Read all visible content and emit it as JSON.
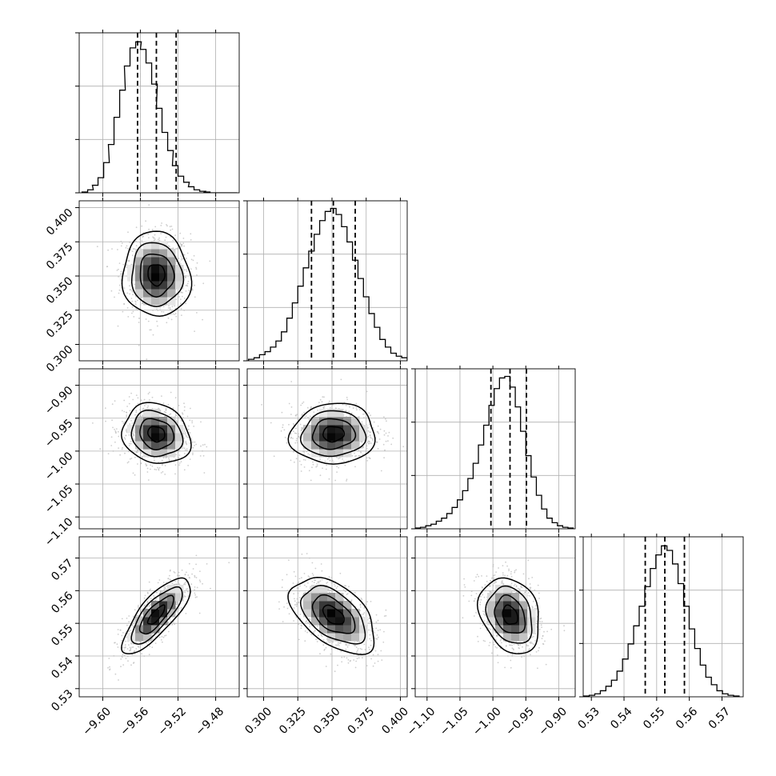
{
  "chart_data": {
    "type": "scatter",
    "plot_kind": "corner",
    "colors": {
      "line": "#000000",
      "grid": "#b0b0b0",
      "scatter": "#bdbdbd",
      "frame": "#000000"
    },
    "grid": true,
    "quantiles_shown": [
      0.16,
      0.5,
      0.84
    ],
    "params": [
      {
        "range": [
          -9.625,
          -9.455
        ],
        "ticks": [
          -9.6,
          -9.56,
          -9.52,
          -9.48
        ],
        "tick_labels": [
          "−9.60",
          "−9.56",
          "−9.52",
          "−9.48"
        ],
        "mean": -9.543,
        "sd": 0.018,
        "quantiles": [
          -9.563,
          -9.543,
          -9.522
        ],
        "hist_x": [
          -9.619,
          -9.613,
          -9.608,
          -9.602,
          -9.596,
          -9.591,
          -9.585,
          -9.579,
          -9.574,
          -9.568,
          -9.562,
          -9.557,
          -9.551,
          -9.545,
          -9.54,
          -9.534,
          -9.528,
          -9.523,
          -9.517,
          -9.511,
          -9.506,
          -9.5,
          -9.494,
          -9.489,
          -9.483,
          -9.477,
          -9.472,
          -9.466,
          -9.46
        ],
        "hist_counts": [
          0.005,
          0.02,
          0.05,
          0.1,
          0.2,
          0.32,
          0.5,
          0.68,
          0.84,
          0.96,
          1.0,
          0.95,
          0.86,
          0.72,
          0.56,
          0.4,
          0.28,
          0.18,
          0.11,
          0.07,
          0.04,
          0.02,
          0.01,
          0.005,
          0.0,
          0.0,
          0.0,
          0.0,
          0.0
        ],
        "hist_max": 1.06
      },
      {
        "range": [
          0.288,
          0.405
        ],
        "ticks": [
          0.3,
          0.325,
          0.35,
          0.375,
          0.4
        ],
        "tick_labels": [
          "0.300",
          "0.325",
          "0.350",
          "0.375",
          "0.400"
        ],
        "mean": 0.351,
        "sd": 0.0155,
        "quantiles": [
          0.335,
          0.351,
          0.367
        ],
        "hist_x": [
          0.291,
          0.295,
          0.299,
          0.303,
          0.307,
          0.311,
          0.315,
          0.319,
          0.323,
          0.327,
          0.331,
          0.335,
          0.339,
          0.343,
          0.347,
          0.351,
          0.355,
          0.359,
          0.363,
          0.367,
          0.371,
          0.375,
          0.379,
          0.383,
          0.387,
          0.391,
          0.395,
          0.399,
          0.403
        ],
        "hist_counts": [
          0.01,
          0.02,
          0.04,
          0.06,
          0.09,
          0.13,
          0.19,
          0.28,
          0.38,
          0.49,
          0.61,
          0.72,
          0.83,
          0.92,
          0.98,
          1.0,
          0.96,
          0.88,
          0.78,
          0.66,
          0.54,
          0.42,
          0.31,
          0.22,
          0.14,
          0.09,
          0.05,
          0.03,
          0.02
        ],
        "hist_max": 1.05
      },
      {
        "range": [
          -1.118,
          -0.875
        ],
        "ticks": [
          -1.1,
          -1.05,
          -1.0,
          -0.95,
          -0.9
        ],
        "tick_labels": [
          "−1.10",
          "−1.05",
          "−1.00",
          "−0.95",
          "−0.90"
        ],
        "mean": -0.974,
        "sd": 0.023,
        "quantiles": [
          -1.003,
          -0.974,
          -0.949
        ],
        "hist_x": [
          -1.114,
          -1.106,
          -1.098,
          -1.09,
          -1.082,
          -1.074,
          -1.066,
          -1.058,
          -1.05,
          -1.042,
          -1.034,
          -1.026,
          -1.018,
          -1.01,
          -1.002,
          -0.994,
          -0.986,
          -0.978,
          -0.97,
          -0.962,
          -0.954,
          -0.946,
          -0.938,
          -0.93,
          -0.922,
          -0.914,
          -0.906,
          -0.898,
          -0.89,
          -0.882
        ],
        "hist_counts": [
          0.005,
          0.01,
          0.02,
          0.03,
          0.05,
          0.07,
          0.1,
          0.14,
          0.19,
          0.25,
          0.33,
          0.43,
          0.55,
          0.68,
          0.81,
          0.92,
          0.99,
          1.0,
          0.93,
          0.8,
          0.64,
          0.48,
          0.34,
          0.22,
          0.13,
          0.07,
          0.04,
          0.02,
          0.01,
          0.005
        ],
        "hist_max": 1.05
      },
      {
        "range": [
          0.5275,
          0.5765
        ],
        "ticks": [
          0.53,
          0.54,
          0.55,
          0.56,
          0.57
        ],
        "tick_labels": [
          "0.53",
          "0.54",
          "0.55",
          "0.56",
          "0.57"
        ],
        "mean": 0.5525,
        "sd": 0.0058,
        "quantiles": [
          0.5465,
          0.5525,
          0.5585
        ],
        "hist_x": [
          0.5285,
          0.5302,
          0.5319,
          0.5336,
          0.5353,
          0.537,
          0.5387,
          0.5404,
          0.5421,
          0.5438,
          0.5455,
          0.5472,
          0.5489,
          0.5506,
          0.5523,
          0.554,
          0.5557,
          0.5574,
          0.5591,
          0.5608,
          0.5625,
          0.5642,
          0.5659,
          0.5676,
          0.5693,
          0.571,
          0.5727,
          0.5744
        ],
        "hist_counts": [
          0.005,
          0.01,
          0.02,
          0.04,
          0.07,
          0.11,
          0.17,
          0.25,
          0.35,
          0.47,
          0.6,
          0.73,
          0.85,
          0.94,
          1.0,
          0.97,
          0.88,
          0.75,
          0.6,
          0.45,
          0.32,
          0.21,
          0.13,
          0.08,
          0.04,
          0.02,
          0.01,
          0.005
        ],
        "hist_max": 1.06
      }
    ],
    "pairs": [
      {
        "row": 1,
        "col": 0,
        "correlation": -0.05
      },
      {
        "row": 2,
        "col": 0,
        "correlation": -0.15
      },
      {
        "row": 2,
        "col": 1,
        "correlation": 0.05
      },
      {
        "row": 3,
        "col": 0,
        "correlation": 0.78
      },
      {
        "row": 3,
        "col": 1,
        "correlation": -0.5
      },
      {
        "row": 3,
        "col": 2,
        "correlation": -0.25
      }
    ],
    "contour_levels_sigma": [
      0.5,
      1.0,
      1.5,
      2.0
    ]
  }
}
